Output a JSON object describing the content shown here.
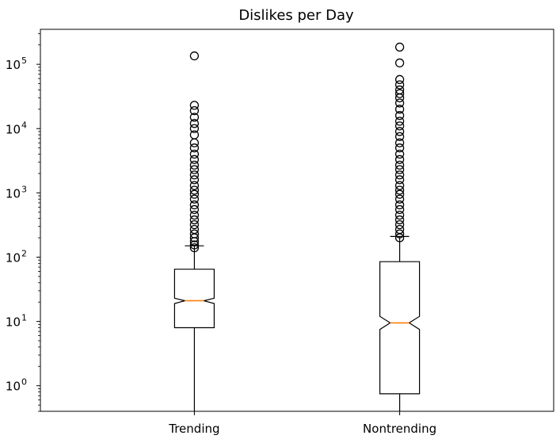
{
  "chart_data": {
    "type": "box",
    "title": "Dislikes per Day",
    "xlabel": "",
    "ylabel": "",
    "yscale": "log",
    "ylim": [
      0.4,
      350000
    ],
    "y_ticks": [
      {
        "value": 1,
        "base": "10",
        "exp": "0"
      },
      {
        "value": 10,
        "base": "10",
        "exp": "1"
      },
      {
        "value": 100,
        "base": "10",
        "exp": "2"
      },
      {
        "value": 1000,
        "base": "10",
        "exp": "3"
      },
      {
        "value": 10000,
        "base": "10",
        "exp": "4"
      },
      {
        "value": 100000,
        "base": "10",
        "exp": "5"
      }
    ],
    "grid": false,
    "notched": true,
    "categories": [
      "Trending",
      "Nontrending"
    ],
    "boxes": [
      {
        "label": "Trending",
        "whisker_low": 0.3,
        "q1": 8,
        "median": 21,
        "q3": 65,
        "whisker_high": 150,
        "notch_low": 19,
        "notch_high": 23,
        "outliers": [
          140,
          155,
          175,
          200,
          230,
          270,
          320,
          380,
          450,
          550,
          650,
          800,
          950,
          1100,
          1300,
          1600,
          1900,
          2300,
          2700,
          3300,
          4000,
          5000,
          6000,
          8000,
          10000,
          12000,
          15000,
          19000,
          23000,
          135000
        ]
      },
      {
        "label": "Nontrending",
        "whisker_low": 0.3,
        "q1": 0.75,
        "median": 9.5,
        "q3": 85,
        "whisker_high": 210,
        "notch_low": 7.5,
        "notch_high": 12,
        "outliers": [
          200,
          230,
          270,
          320,
          380,
          450,
          550,
          650,
          800,
          950,
          1100,
          1300,
          1600,
          1900,
          2300,
          2700,
          3300,
          4000,
          5000,
          6000,
          7500,
          9000,
          11000,
          13000,
          16000,
          20000,
          25000,
          30000,
          35000,
          40000,
          48000,
          58000,
          105000,
          185000
        ]
      }
    ],
    "colors": {
      "box_edge": "#000000",
      "median": "#ff7f0e",
      "outlier": "#000000"
    }
  }
}
